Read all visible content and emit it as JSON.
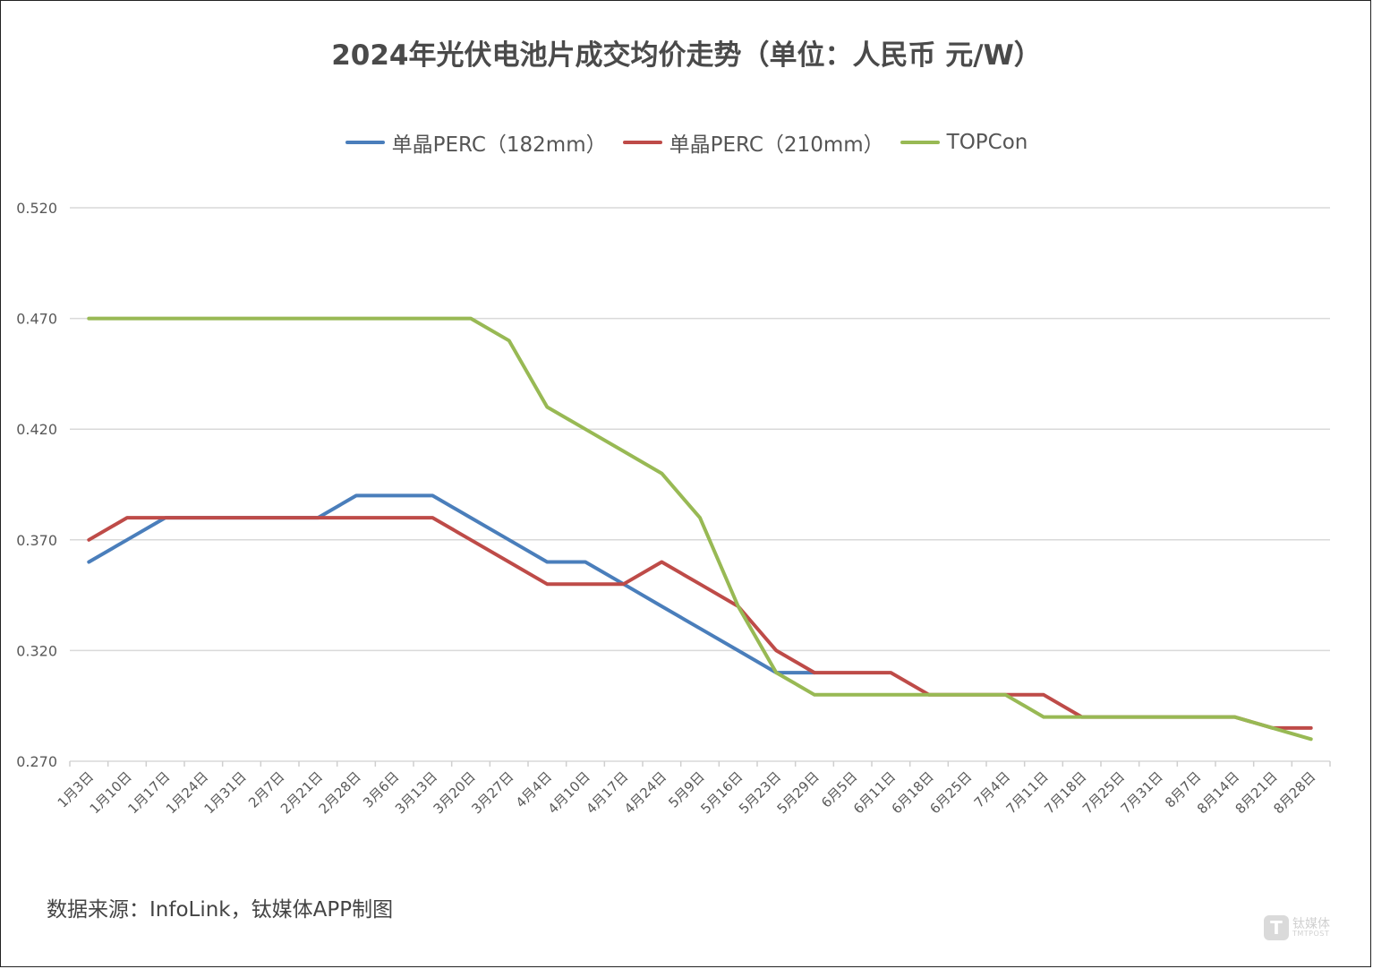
{
  "title": "2024年光伏电池片成交均价走势（单位：人民币 元/W）",
  "legend": [
    {
      "label": "单晶PERC（182mm）",
      "color": "#4a7ebb"
    },
    {
      "label": "单晶PERC（210mm）",
      "color": "#be4b48"
    },
    {
      "label": "TOPCon",
      "color": "#98b954"
    }
  ],
  "source": "数据来源：InfoLink，钛媒体APP制图",
  "watermark": {
    "logo": "T",
    "cn": "钛媒体",
    "en": "TMTPOST"
  },
  "chart_data": {
    "type": "line",
    "title": "2024年光伏电池片成交均价走势（单位：人民币 元/W）",
    "xlabel": "",
    "ylabel": "",
    "ylim": [
      0.27,
      0.52
    ],
    "yticks": [
      "0.270",
      "0.320",
      "0.370",
      "0.420",
      "0.470",
      "0.520"
    ],
    "grid": true,
    "legend_position": "top",
    "categories": [
      "1月3日",
      "1月10日",
      "1月17日",
      "1月24日",
      "1月31日",
      "2月7日",
      "2月21日",
      "2月28日",
      "3月6日",
      "3月13日",
      "3月20日",
      "3月27日",
      "4月4日",
      "4月10日",
      "4月17日",
      "4月24日",
      "5月9日",
      "5月16日",
      "5月23日",
      "5月29日",
      "6月5日",
      "6月11日",
      "6月18日",
      "6月25日",
      "7月4日",
      "7月11日",
      "7月18日",
      "7月25日",
      "7月31日",
      "8月7日",
      "8月14日",
      "8月21日",
      "8月28日"
    ],
    "series": [
      {
        "name": "单晶PERC（182mm）",
        "color": "#4a7ebb",
        "values": [
          0.36,
          0.37,
          0.38,
          0.38,
          0.38,
          0.38,
          0.38,
          0.39,
          0.39,
          0.39,
          0.38,
          0.37,
          0.36,
          0.36,
          0.35,
          0.34,
          0.33,
          0.32,
          0.31,
          0.31,
          null,
          null,
          null,
          null,
          null,
          null,
          null,
          null,
          null,
          null,
          null,
          null,
          null
        ]
      },
      {
        "name": "单晶PERC（210mm）",
        "color": "#be4b48",
        "values": [
          0.37,
          0.38,
          0.38,
          0.38,
          0.38,
          0.38,
          0.38,
          0.38,
          0.38,
          0.38,
          0.37,
          0.36,
          0.35,
          0.35,
          0.35,
          0.36,
          0.35,
          0.34,
          0.32,
          0.31,
          0.31,
          0.31,
          0.3,
          0.3,
          0.3,
          0.3,
          0.29,
          0.29,
          0.29,
          0.29,
          0.29,
          0.285,
          0.285
        ]
      },
      {
        "name": "TOPCon",
        "color": "#98b954",
        "values": [
          0.47,
          0.47,
          0.47,
          0.47,
          0.47,
          0.47,
          0.47,
          0.47,
          0.47,
          0.47,
          0.47,
          0.46,
          0.43,
          0.42,
          0.41,
          0.4,
          0.38,
          0.34,
          0.31,
          0.3,
          0.3,
          0.3,
          0.3,
          0.3,
          0.3,
          0.29,
          0.29,
          0.29,
          0.29,
          0.29,
          0.29,
          0.285,
          0.28
        ]
      }
    ]
  }
}
